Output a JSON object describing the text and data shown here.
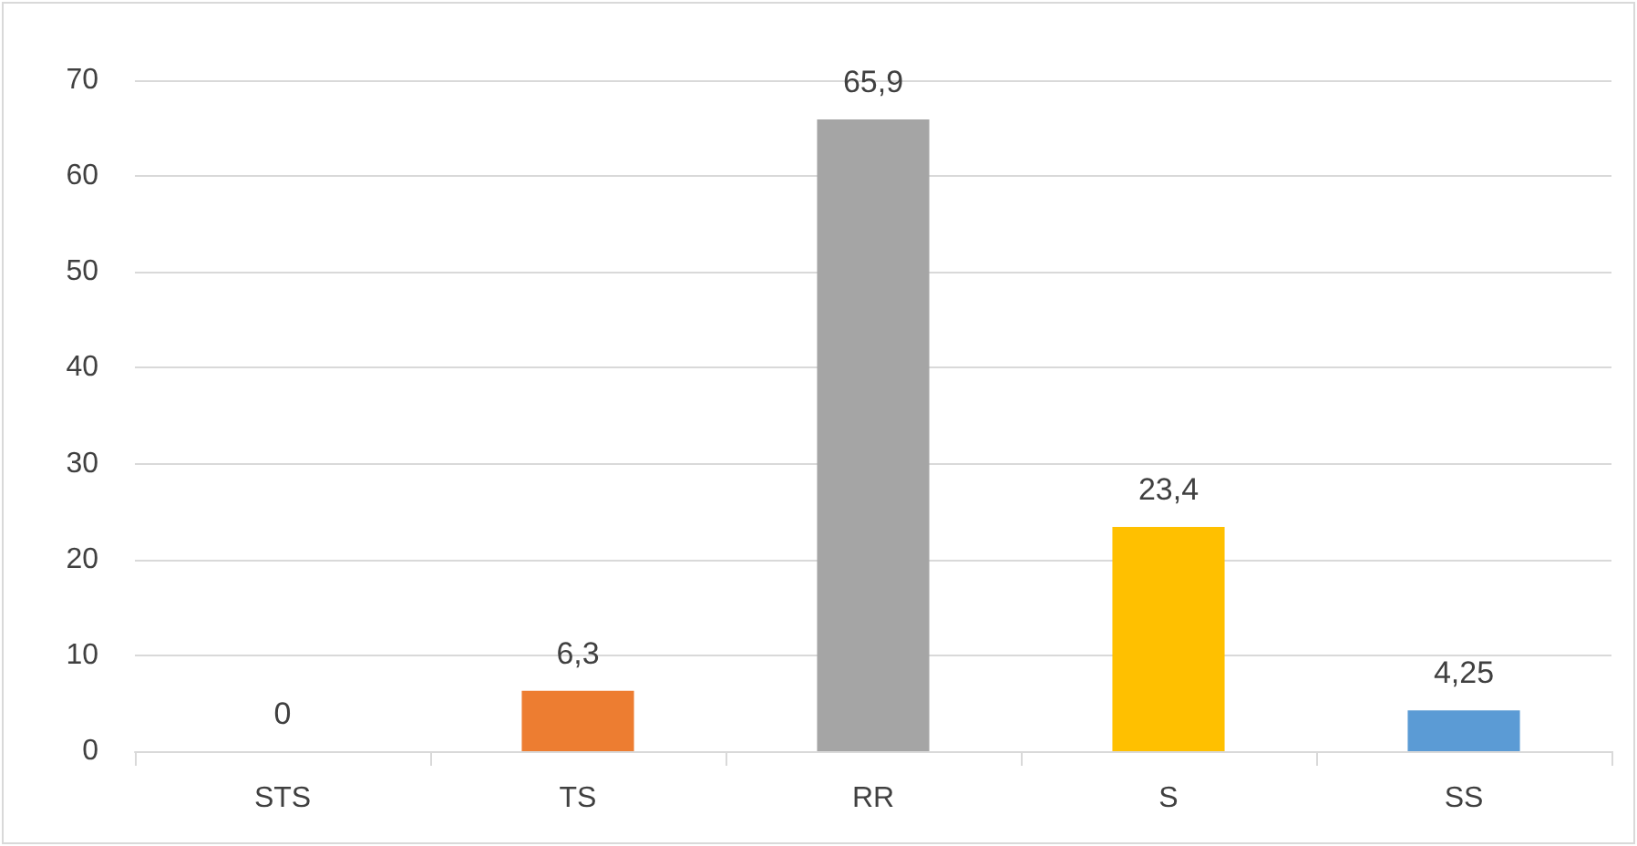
{
  "chart_data": {
    "type": "bar",
    "categories": [
      "STS",
      "TS",
      "RR",
      "S",
      "SS"
    ],
    "values": [
      0,
      6.3,
      65.9,
      23.4,
      4.25
    ],
    "colors": [
      "#4472c4",
      "#ed7d31",
      "#a5a5a5",
      "#ffc000",
      "#5b9bd5"
    ],
    "value_labels": [
      "0",
      "6,3",
      "65,9",
      "23,4",
      "4,25"
    ],
    "ylim": [
      0,
      70
    ],
    "yticks": [
      0,
      10,
      20,
      30,
      40,
      50,
      60,
      70
    ],
    "grid": "y"
  }
}
